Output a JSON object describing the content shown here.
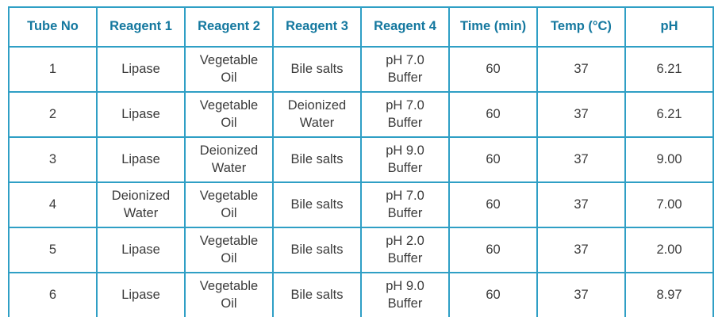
{
  "colors": {
    "header_text": "#14789f",
    "border": "#2f9fc5",
    "body_text": "#3b3b3b",
    "background": "#ffffff"
  },
  "table": {
    "headers": [
      "Tube No",
      "Reagent 1",
      "Reagent 2",
      "Reagent 3",
      "Reagent 4",
      "Time (min)",
      "Temp (°C)",
      "pH"
    ],
    "rows": [
      [
        "1",
        "Lipase",
        "Vegetable Oil",
        "Bile salts",
        "pH 7.0 Buffer",
        "60",
        "37",
        "6.21"
      ],
      [
        "2",
        "Lipase",
        "Vegetable Oil",
        "Deionized Water",
        "pH 7.0 Buffer",
        "60",
        "37",
        "6.21"
      ],
      [
        "3",
        "Lipase",
        "Deionized Water",
        "Bile salts",
        "pH 9.0 Buffer",
        "60",
        "37",
        "9.00"
      ],
      [
        "4",
        "Deionized Water",
        "Vegetable Oil",
        "Bile salts",
        "pH 7.0 Buffer",
        "60",
        "37",
        "7.00"
      ],
      [
        "5",
        "Lipase",
        "Vegetable Oil",
        "Bile salts",
        "pH 2.0 Buffer",
        "60",
        "37",
        "2.00"
      ],
      [
        "6",
        "Lipase",
        "Vegetable Oil",
        "Bile salts",
        "pH 9.0 Buffer",
        "60",
        "37",
        "8.97"
      ]
    ]
  },
  "chart_data": {
    "type": "table",
    "title": "",
    "columns": [
      "Tube No",
      "Reagent 1",
      "Reagent 2",
      "Reagent 3",
      "Reagent 4",
      "Time (min)",
      "Temp (°C)",
      "pH"
    ],
    "rows": [
      {
        "tube_no": 1,
        "reagent_1": "Lipase",
        "reagent_2": "Vegetable Oil",
        "reagent_3": "Bile salts",
        "reagent_4": "pH 7.0 Buffer",
        "time_min": 60,
        "temp_c": 37,
        "ph": 6.21
      },
      {
        "tube_no": 2,
        "reagent_1": "Lipase",
        "reagent_2": "Vegetable Oil",
        "reagent_3": "Deionized Water",
        "reagent_4": "pH 7.0 Buffer",
        "time_min": 60,
        "temp_c": 37,
        "ph": 6.21
      },
      {
        "tube_no": 3,
        "reagent_1": "Lipase",
        "reagent_2": "Deionized Water",
        "reagent_3": "Bile salts",
        "reagent_4": "pH 9.0 Buffer",
        "time_min": 60,
        "temp_c": 37,
        "ph": 9.0
      },
      {
        "tube_no": 4,
        "reagent_1": "Deionized Water",
        "reagent_2": "Vegetable Oil",
        "reagent_3": "Bile salts",
        "reagent_4": "pH 7.0 Buffer",
        "time_min": 60,
        "temp_c": 37,
        "ph": 7.0
      },
      {
        "tube_no": 5,
        "reagent_1": "Lipase",
        "reagent_2": "Vegetable Oil",
        "reagent_3": "Bile salts",
        "reagent_4": "pH 2.0 Buffer",
        "time_min": 60,
        "temp_c": 37,
        "ph": 2.0
      },
      {
        "tube_no": 6,
        "reagent_1": "Lipase",
        "reagent_2": "Vegetable Oil",
        "reagent_3": "Bile salts",
        "reagent_4": "pH 9.0 Buffer",
        "time_min": 60,
        "temp_c": 37,
        "ph": 8.97
      }
    ]
  }
}
